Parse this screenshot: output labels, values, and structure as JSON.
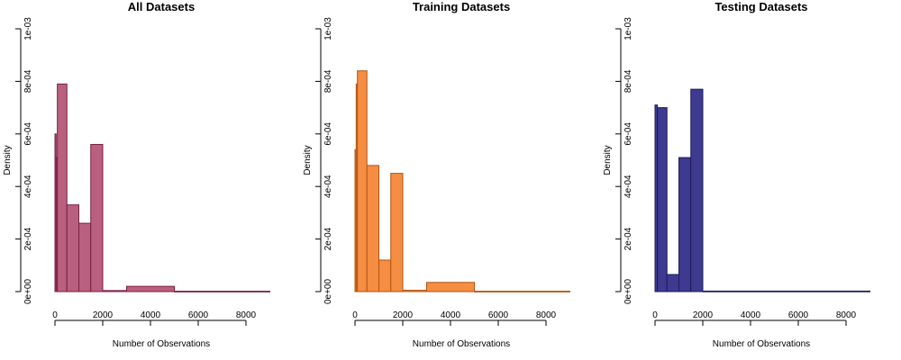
{
  "chart_data": [
    {
      "type": "bar",
      "title": "All Datasets",
      "xlabel": "Number of Observations",
      "ylabel": "Density",
      "xlim": [
        0,
        9000
      ],
      "ylim": [
        0,
        0.001
      ],
      "xticks": [
        0,
        2000,
        4000,
        6000,
        8000
      ],
      "xtick_labels": [
        "0",
        "2000",
        "4000",
        "6000",
        "8000"
      ],
      "yticks": [
        0,
        0.0002,
        0.0004,
        0.0006,
        0.0008,
        0.001
      ],
      "ytick_labels": [
        "0e+00",
        "2e-04",
        "4e-04",
        "6e-04",
        "8e-04",
        "1e-03"
      ],
      "grid": false,
      "fill": "#b8607e",
      "stroke": "#7a1f45",
      "bins": [
        {
          "x0": 0,
          "x1": 50,
          "density": 0.0006
        },
        {
          "x0": 50,
          "x1": 100,
          "density": 0.00051
        },
        {
          "x0": 100,
          "x1": 500,
          "density": 0.00079
        },
        {
          "x0": 500,
          "x1": 1000,
          "density": 0.00033
        },
        {
          "x0": 1000,
          "x1": 1500,
          "density": 0.00026
        },
        {
          "x0": 1500,
          "x1": 2000,
          "density": 0.00056
        },
        {
          "x0": 2000,
          "x1": 3000,
          "density": 4e-06
        },
        {
          "x0": 3000,
          "x1": 5000,
          "density": 2e-05
        },
        {
          "x0": 5000,
          "x1": 9000,
          "density": 1.5e-06
        }
      ]
    },
    {
      "type": "bar",
      "title": "Training Datasets",
      "xlabel": "Number of Observations",
      "ylabel": "Density",
      "xlim": [
        0,
        9000
      ],
      "ylim": [
        0,
        0.001
      ],
      "xticks": [
        0,
        2000,
        4000,
        6000,
        8000
      ],
      "xtick_labels": [
        "0",
        "2000",
        "4000",
        "6000",
        "8000"
      ],
      "yticks": [
        0,
        0.0002,
        0.0004,
        0.0006,
        0.0008,
        0.001
      ],
      "ytick_labels": [
        "0e+00",
        "2e-04",
        "4e-04",
        "6e-04",
        "8e-04",
        "1e-03"
      ],
      "grid": false,
      "fill": "#f58d42",
      "stroke": "#b35412",
      "bins": [
        {
          "x0": 0,
          "x1": 50,
          "density": 0.00054
        },
        {
          "x0": 50,
          "x1": 100,
          "density": 0.00079
        },
        {
          "x0": 100,
          "x1": 500,
          "density": 0.00084
        },
        {
          "x0": 500,
          "x1": 1000,
          "density": 0.00048
        },
        {
          "x0": 1000,
          "x1": 1500,
          "density": 0.00012
        },
        {
          "x0": 1500,
          "x1": 2000,
          "density": 0.00045
        },
        {
          "x0": 2000,
          "x1": 3000,
          "density": 5e-06
        },
        {
          "x0": 3000,
          "x1": 5000,
          "density": 3.5e-05
        },
        {
          "x0": 5000,
          "x1": 9000,
          "density": 1.5e-06
        }
      ]
    },
    {
      "type": "bar",
      "title": "Testing Datasets",
      "xlabel": "Number of Observations",
      "ylabel": "Density",
      "xlim": [
        0,
        9000
      ],
      "ylim": [
        0,
        0.001
      ],
      "xticks": [
        0,
        2000,
        4000,
        6000,
        8000
      ],
      "xtick_labels": [
        "0",
        "2000",
        "4000",
        "6000",
        "8000"
      ],
      "yticks": [
        0,
        0.0002,
        0.0004,
        0.0006,
        0.0008,
        0.001
      ],
      "ytick_labels": [
        "0e+00",
        "2e-04",
        "4e-04",
        "6e-04",
        "8e-04",
        "1e-03"
      ],
      "grid": false,
      "fill": "#3d3a8f",
      "stroke": "#1e1c5c",
      "bins": [
        {
          "x0": 0,
          "x1": 100,
          "density": 0.00071
        },
        {
          "x0": 100,
          "x1": 500,
          "density": 0.0007
        },
        {
          "x0": 500,
          "x1": 1000,
          "density": 6.5e-05
        },
        {
          "x0": 1000,
          "x1": 1500,
          "density": 0.00051
        },
        {
          "x0": 1500,
          "x1": 2000,
          "density": 0.00077
        },
        {
          "x0": 2000,
          "x1": 9000,
          "density": 2e-06
        }
      ]
    }
  ]
}
